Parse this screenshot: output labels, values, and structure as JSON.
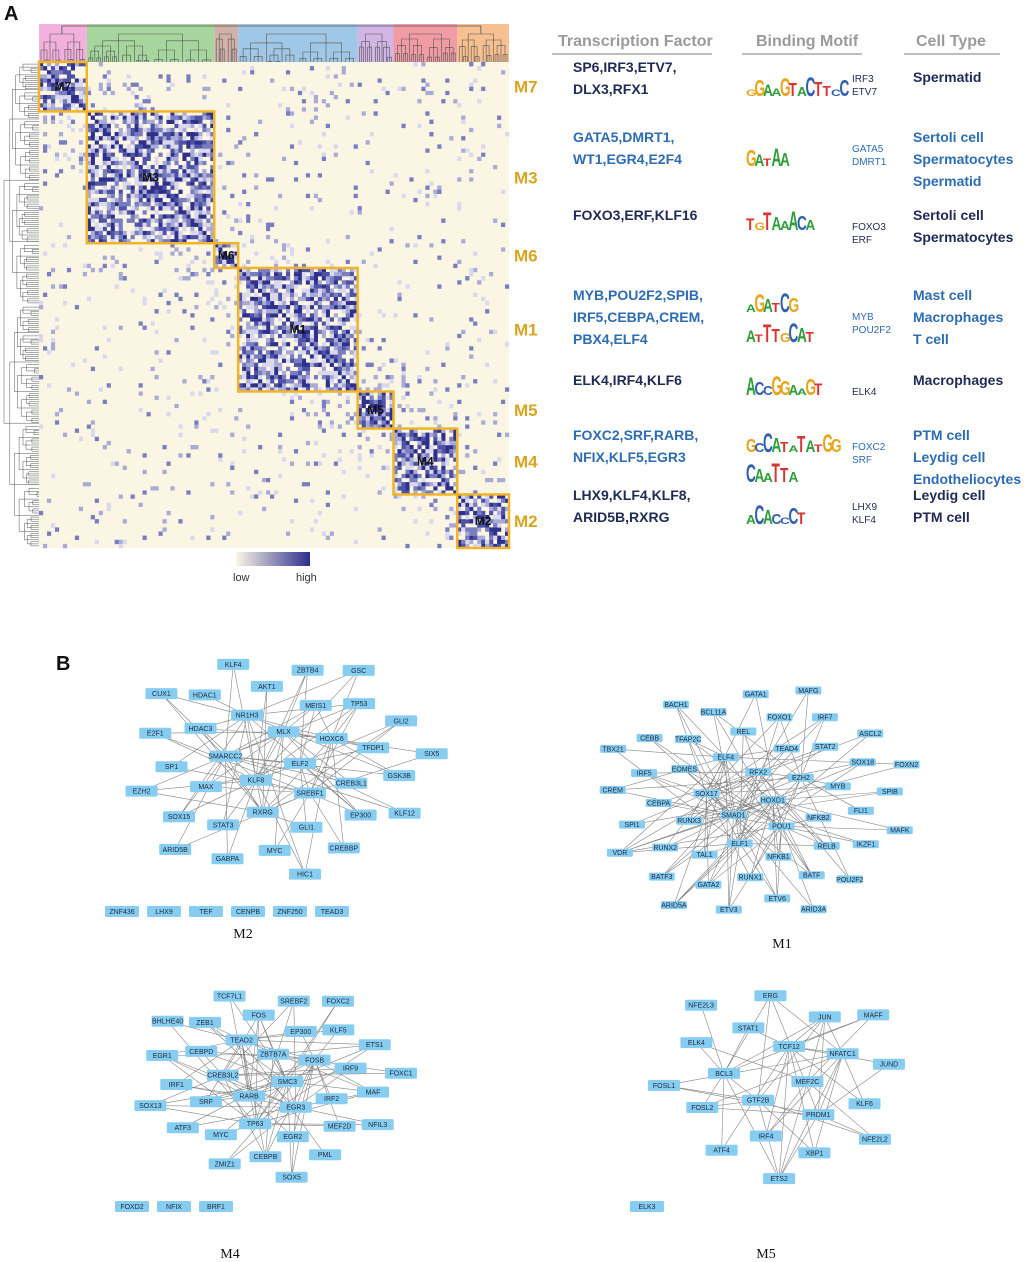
{
  "panel_a": {
    "letter": "A",
    "dendro_colors": [
      "#f0a3d6",
      "#97cf8c",
      "#c9a49b",
      "#8fbde0",
      "#c8a8e0",
      "#ee8a94",
      "#f6b57c"
    ],
    "modules": [
      {
        "id": "M7",
        "label": "M7",
        "start": 0,
        "end": 12
      },
      {
        "id": "M3",
        "label": "M3",
        "start": 12,
        "end": 44
      },
      {
        "id": "M6",
        "label": "M6",
        "start": 44,
        "end": 50
      },
      {
        "id": "M1",
        "label": "M1",
        "start": 50,
        "end": 80
      },
      {
        "id": "M5",
        "label": "M5",
        "start": 80,
        "end": 89
      },
      {
        "id": "M4",
        "label": "M4",
        "start": 89,
        "end": 105
      },
      {
        "id": "M2",
        "label": "M2",
        "start": 105,
        "end": 118
      }
    ],
    "legend": {
      "low": "low",
      "high": "high"
    },
    "headers": {
      "tf": "Transcription Factor",
      "motif": "Binding Motif",
      "cell": "Cell Type"
    },
    "rows": [
      {
        "module": "M7",
        "tf": [
          "SP6,IRF3,ETV7,",
          "DLX3,RFX1"
        ],
        "motif_seq": [
          "GGAAGTACTTCC"
        ],
        "motif_tfs": [
          "IRF3",
          "ETV7"
        ],
        "cells": [
          "Spermatid"
        ],
        "color": "#1f2a56"
      },
      {
        "module": "M3",
        "tf": [
          "GATA5,DMRT1,",
          "WT1,EGR4,E2F4"
        ],
        "motif_seq": [
          "GATAA"
        ],
        "motif_tfs": [
          "GATA5",
          "DMRT1"
        ],
        "cells": [
          "Sertoli cell",
          "Spermatocytes",
          "Spermatid"
        ],
        "color": "#2d6cb3"
      },
      {
        "module": "M6",
        "tf": [
          "FOXO3,ERF,KLF16"
        ],
        "motif_seq": [
          "TGTAAACA"
        ],
        "motif_tfs": [
          "FOXO3",
          "ERF"
        ],
        "cells": [
          "Sertoli cell",
          "Spermatocytes"
        ],
        "color": "#1f2a56"
      },
      {
        "module": "M1",
        "tf": [
          "MYB,POU2F2,SPIB,",
          "IRF5,CEBPA,CREM,",
          "PBX4,ELF4"
        ],
        "motif_seq": [
          "AGATCG",
          "ATTTGCAT"
        ],
        "motif_tfs": [
          "MYB",
          "POU2F2"
        ],
        "cells": [
          "Mast cell",
          "Macrophages",
          "T cell"
        ],
        "color": "#2d6cb3"
      },
      {
        "module": "M5",
        "tf": [
          "ELK4,IRF4,KLF6"
        ],
        "motif_seq": [
          "ACCGGAAGT"
        ],
        "motif_tfs": [
          "ELK4"
        ],
        "cells": [
          "Macrophages"
        ],
        "color": "#1f2a56"
      },
      {
        "module": "M4",
        "tf": [
          "FOXC2,SRF,RARB,",
          "NFIX,KLF5,EGR3"
        ],
        "motif_seq": [
          "GCCATATATGG",
          "CAATTA"
        ],
        "motif_tfs": [
          "FOXC2",
          "SRF"
        ],
        "cells": [
          "PTM cell",
          "Leydig cell",
          "Endotheliocytes"
        ],
        "color": "#2d6cb3"
      },
      {
        "module": "M2",
        "tf": [
          "LHX9,KLF4,KLF8,",
          "ARID5B,RXRG"
        ],
        "motif_seq": [
          "ACACCCT"
        ],
        "motif_tfs": [
          "LHX9",
          "KLF4"
        ],
        "cells": [
          "Leydig cell",
          "PTM cell"
        ],
        "color": "#1f2a56"
      }
    ]
  },
  "panel_b": {
    "letter": "B",
    "networks": [
      {
        "title": "M2",
        "nodes": [
          "ELF2",
          "KLF8",
          "MLX",
          "SREBF1",
          "SMARCC2",
          "HOXC6",
          "RXRG",
          "NR1H3",
          "CREB3L1",
          "MAX",
          "MEIS1",
          "GLI1",
          "HDAC3",
          "TFDP1",
          "STAT3",
          "AKT1",
          "EP300",
          "SP1",
          "TP53",
          "MYC",
          "HDAC1",
          "GSK3B",
          "SOX15",
          "ZBTB4",
          "CREBBP",
          "E2F1",
          "GLI2",
          "GABPA",
          "KLF4",
          "KLF12",
          "EZH2",
          "GSC",
          "HIC1",
          "CUX1",
          "SIX5",
          "ARID5B"
        ],
        "isolated": [
          "ZNF436",
          "LHX9",
          "TEF",
          "CENPB",
          "ZNF250",
          "TEAD3"
        ]
      },
      {
        "title": "M1",
        "nodes": [
          "HOXD1",
          "SMAD1",
          "RFX2",
          "POU1",
          "SOX17",
          "EZH2",
          "ELF1",
          "ELF4",
          "NFKB2",
          "RUNX3",
          "TEAD4",
          "NFKB1",
          "EOMES",
          "MYB",
          "TAL1",
          "REL",
          "RELB",
          "CEBPA",
          "STAT2",
          "RUNX1",
          "TFAP2C",
          "FLI1",
          "RUNX2",
          "FOXO1",
          "BATF",
          "IRF5",
          "SOX18",
          "GATA2",
          "BCL11A",
          "IKZF1",
          "SPI1",
          "IRF7",
          "ETV6",
          "CEBB",
          "SPIB",
          "BATF3",
          "GATA1",
          "POU2F2",
          "CREM",
          "ASCL2",
          "ETV3",
          "BACH1",
          "MAFK",
          "VDR",
          "MAFG",
          "ARID3A",
          "TBX21",
          "FOXN2",
          "ARID5A"
        ],
        "isolated": []
      },
      {
        "title": "M4",
        "nodes": [
          "SMC3",
          "RARB",
          "ZBTB7A",
          "EGR3",
          "CREB3L2",
          "FOSB",
          "TP63",
          "TEAD2",
          "IRF2",
          "SRF",
          "EP300",
          "EGR2",
          "CEBPD",
          "IRF9",
          "MYC",
          "FOS",
          "MEF2D",
          "IRF1",
          "KLF5",
          "CEBPB",
          "ZEB1",
          "MAF",
          "ATF3",
          "SREBF2",
          "PML",
          "EGR1",
          "ETS1",
          "ZMIZ1",
          "TCF7L1",
          "NFIL3",
          "SOX13",
          "FOXC2",
          "SOX5",
          "BHLHE40",
          "FOXC1"
        ],
        "isolated": [
          "FOXD2",
          "NFIX",
          "BRF1"
        ]
      },
      {
        "title": "M5",
        "nodes": [
          "MEF2C",
          "GTF2B",
          "TCF12",
          "PRDM1",
          "BCL3",
          "NFATC1",
          "IRF4",
          "STAT1",
          "KLF6",
          "FOSL2",
          "JUN",
          "XBP1",
          "ELK4",
          "JUND",
          "ATF4",
          "ERG",
          "NFE2L2",
          "FOSL1",
          "MAFF",
          "ETS2",
          "NFE2L3"
        ],
        "isolated": [
          "ELK3"
        ]
      }
    ]
  }
}
